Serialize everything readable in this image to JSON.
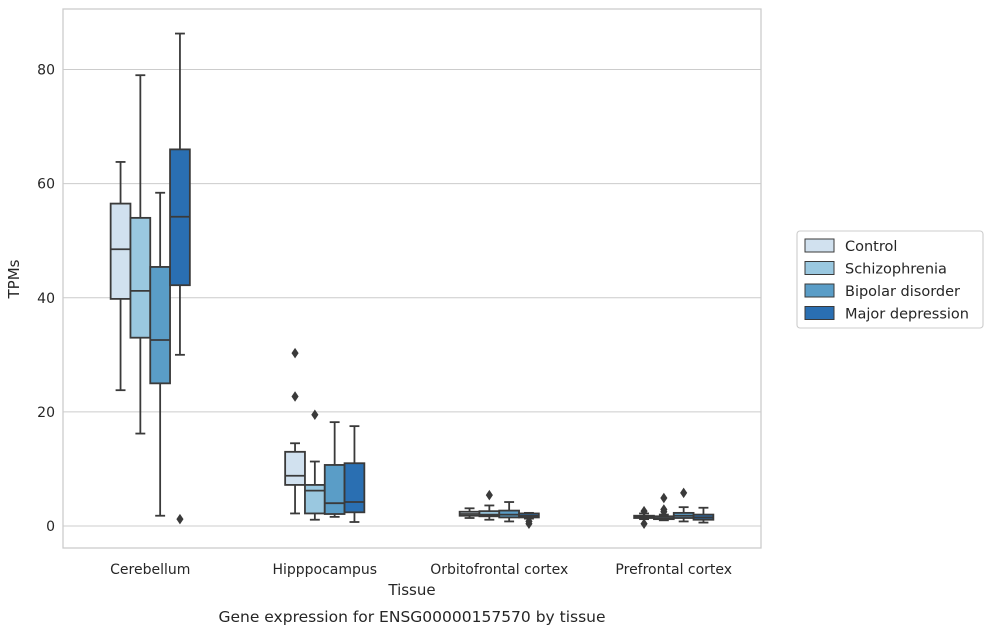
{
  "caption": "Gene expression for ENSG00000157570 by tissue",
  "chart_data": {
    "type": "boxplot",
    "xlabel": "Tissue",
    "ylabel": "TPMs",
    "ylim": [
      -3.8,
      91
    ],
    "yticks": [
      0,
      20,
      40,
      60,
      80
    ],
    "grid": "horizontal",
    "legend_placement": "right",
    "categories": [
      "Cerebellum",
      "Hipppocampus",
      "Orbitofrontal cortex",
      "Prefrontal cortex"
    ],
    "series": [
      {
        "name": "Control",
        "color": "#d1e1ef",
        "boxes": [
          {
            "whisker_low": 23.8,
            "q1": 39.8,
            "median": 48.5,
            "q3": 56.5,
            "whisker_high": 63.8,
            "outliers": []
          },
          {
            "whisker_low": 2.2,
            "q1": 7.2,
            "median": 8.8,
            "q3": 13.0,
            "whisker_high": 14.5,
            "outliers": [
              30.3,
              22.7
            ]
          },
          {
            "whisker_low": 1.4,
            "q1": 1.8,
            "median": 2.1,
            "q3": 2.5,
            "whisker_high": 3.1,
            "outliers": []
          },
          {
            "whisker_low": 1.2,
            "q1": 1.4,
            "median": 1.6,
            "q3": 1.8,
            "whisker_high": 2.2,
            "outliers": [
              0.4,
              2.6
            ]
          }
        ]
      },
      {
        "name": "Schizophrenia",
        "color": "#9ac8e0",
        "boxes": [
          {
            "whisker_low": 16.2,
            "q1": 33.0,
            "median": 41.2,
            "q3": 54.0,
            "whisker_high": 79.0,
            "outliers": []
          },
          {
            "whisker_low": 1.1,
            "q1": 2.2,
            "median": 6.2,
            "q3": 7.2,
            "whisker_high": 11.3,
            "outliers": [
              19.5
            ]
          },
          {
            "whisker_low": 1.1,
            "q1": 1.7,
            "median": 2.0,
            "q3": 2.6,
            "whisker_high": 3.6,
            "outliers": [
              5.4
            ]
          },
          {
            "whisker_low": 1.0,
            "q1": 1.2,
            "median": 1.4,
            "q3": 1.7,
            "whisker_high": 2.0,
            "outliers": [
              4.9,
              2.9,
              2.5
            ]
          }
        ]
      },
      {
        "name": "Bipolar disorder",
        "color": "#5a9dc7",
        "boxes": [
          {
            "whisker_low": 1.8,
            "q1": 25.0,
            "median": 32.6,
            "q3": 45.4,
            "whisker_high": 58.4,
            "outliers": []
          },
          {
            "whisker_low": 1.6,
            "q1": 2.1,
            "median": 4.0,
            "q3": 10.7,
            "whisker_high": 18.2,
            "outliers": []
          },
          {
            "whisker_low": 0.8,
            "q1": 1.5,
            "median": 2.0,
            "q3": 2.7,
            "whisker_high": 4.2,
            "outliers": []
          },
          {
            "whisker_low": 0.8,
            "q1": 1.4,
            "median": 1.8,
            "q3": 2.3,
            "whisker_high": 3.3,
            "outliers": [
              5.8
            ]
          }
        ]
      },
      {
        "name": "Major depression",
        "color": "#2a6fb2",
        "boxes": [
          {
            "whisker_low": 30.0,
            "q1": 42.2,
            "median": 54.2,
            "q3": 66.0,
            "whisker_high": 86.3,
            "outliers": [
              1.2
            ]
          },
          {
            "whisker_low": 0.7,
            "q1": 2.4,
            "median": 4.2,
            "q3": 11.0,
            "whisker_high": 17.5,
            "outliers": []
          },
          {
            "whisker_low": 1.3,
            "q1": 1.5,
            "median": 1.8,
            "q3": 2.2,
            "whisker_high": 2.3,
            "outliers": [
              0.4,
              0.8
            ]
          },
          {
            "whisker_low": 0.6,
            "q1": 1.1,
            "median": 1.5,
            "q3": 2.0,
            "whisker_high": 3.2,
            "outliers": []
          }
        ]
      }
    ]
  }
}
